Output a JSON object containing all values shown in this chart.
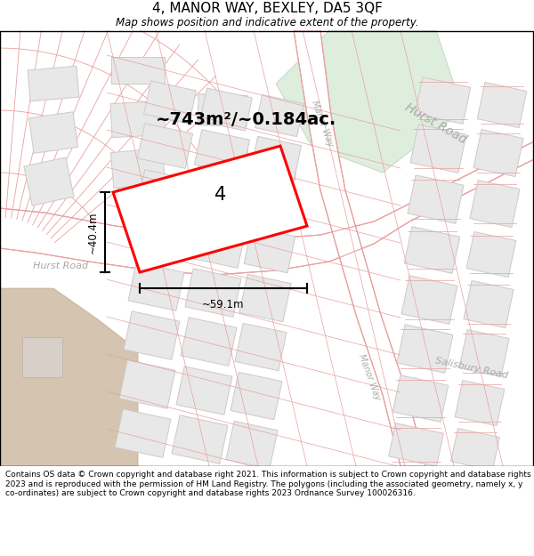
{
  "title": "4, MANOR WAY, BEXLEY, DA5 3QF",
  "subtitle": "Map shows position and indicative extent of the property.",
  "footer": "Contains OS data © Crown copyright and database right 2021. This information is subject to Crown copyright and database rights 2023 and is reproduced with the permission of HM Land Registry. The polygons (including the associated geometry, namely x, y co-ordinates) are subject to Crown copyright and database rights 2023 Ordnance Survey 100026316.",
  "area_label": "~743m²/~0.184ac.",
  "width_label": "~59.1m",
  "height_label": "~40.4m",
  "number_label": "4",
  "map_bg": "#ffffff",
  "road_line_color": "#e8a0a0",
  "block_fill": "#e8e8e8",
  "block_edge": "#d0c8c8",
  "property_fill": "white",
  "property_outline": "red",
  "green_area": "#ddeedd",
  "brown_area": "#d4c4b0",
  "title_fontsize": 11,
  "subtitle_fontsize": 8.5,
  "footer_fontsize": 6.5,
  "road_label_color": "#aaaaaa",
  "road_label_size": 9
}
